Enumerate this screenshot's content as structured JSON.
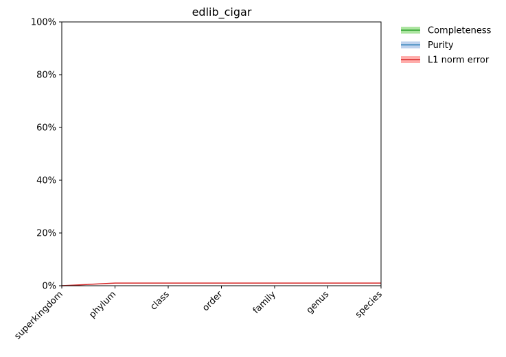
{
  "chart_data": {
    "type": "line",
    "title": "edlib_cigar",
    "xlabel": "",
    "ylabel": "",
    "categories": [
      "superkingdom",
      "phylum",
      "class",
      "order",
      "family",
      "genus",
      "species"
    ],
    "ylim": [
      0,
      1
    ],
    "yticks": [
      0,
      0.2,
      0.4,
      0.6,
      0.8,
      1.0
    ],
    "ytick_labels": [
      "0%",
      "20%",
      "40%",
      "60%",
      "80%",
      "100%"
    ],
    "grid": false,
    "legend_position": "outside-upper-right",
    "series": [
      {
        "name": "Completeness",
        "color": "#2ca02c",
        "band_color": "#98df8a",
        "values": [
          null,
          null,
          null,
          null,
          null,
          null,
          null
        ]
      },
      {
        "name": "Purity",
        "color": "#1f77b4",
        "band_color": "#aec7e8",
        "values": [
          null,
          null,
          null,
          null,
          null,
          null,
          null
        ]
      },
      {
        "name": "L1 norm error",
        "color": "#d62728",
        "band_color": "#ff9896",
        "values": [
          0.0,
          0.01,
          0.01,
          0.01,
          0.01,
          0.01,
          0.01
        ]
      }
    ]
  }
}
